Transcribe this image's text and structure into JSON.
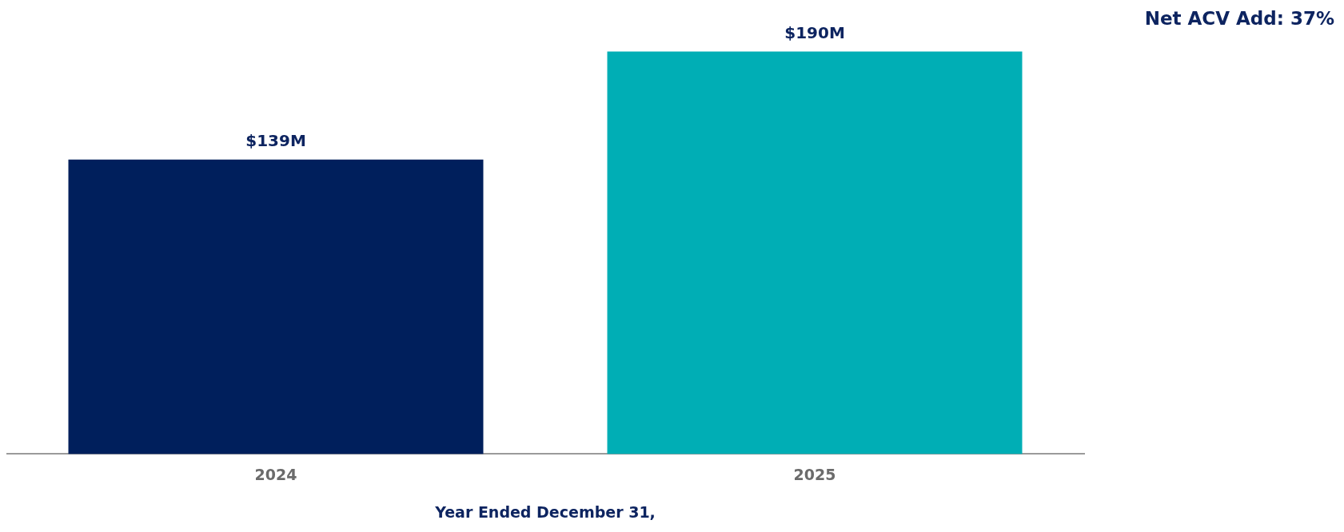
{
  "chart_data": {
    "type": "bar",
    "xlabel": "Year Ended December 31,",
    "categories": [
      "2024",
      "2025"
    ],
    "values": [
      139,
      190
    ],
    "value_labels": [
      "$139M",
      "$190M"
    ],
    "colors": [
      "#001f5c",
      "#00aeb5"
    ],
    "annotations": [
      "Net ACV Add: 37%"
    ],
    "grid": false,
    "legend": false
  }
}
